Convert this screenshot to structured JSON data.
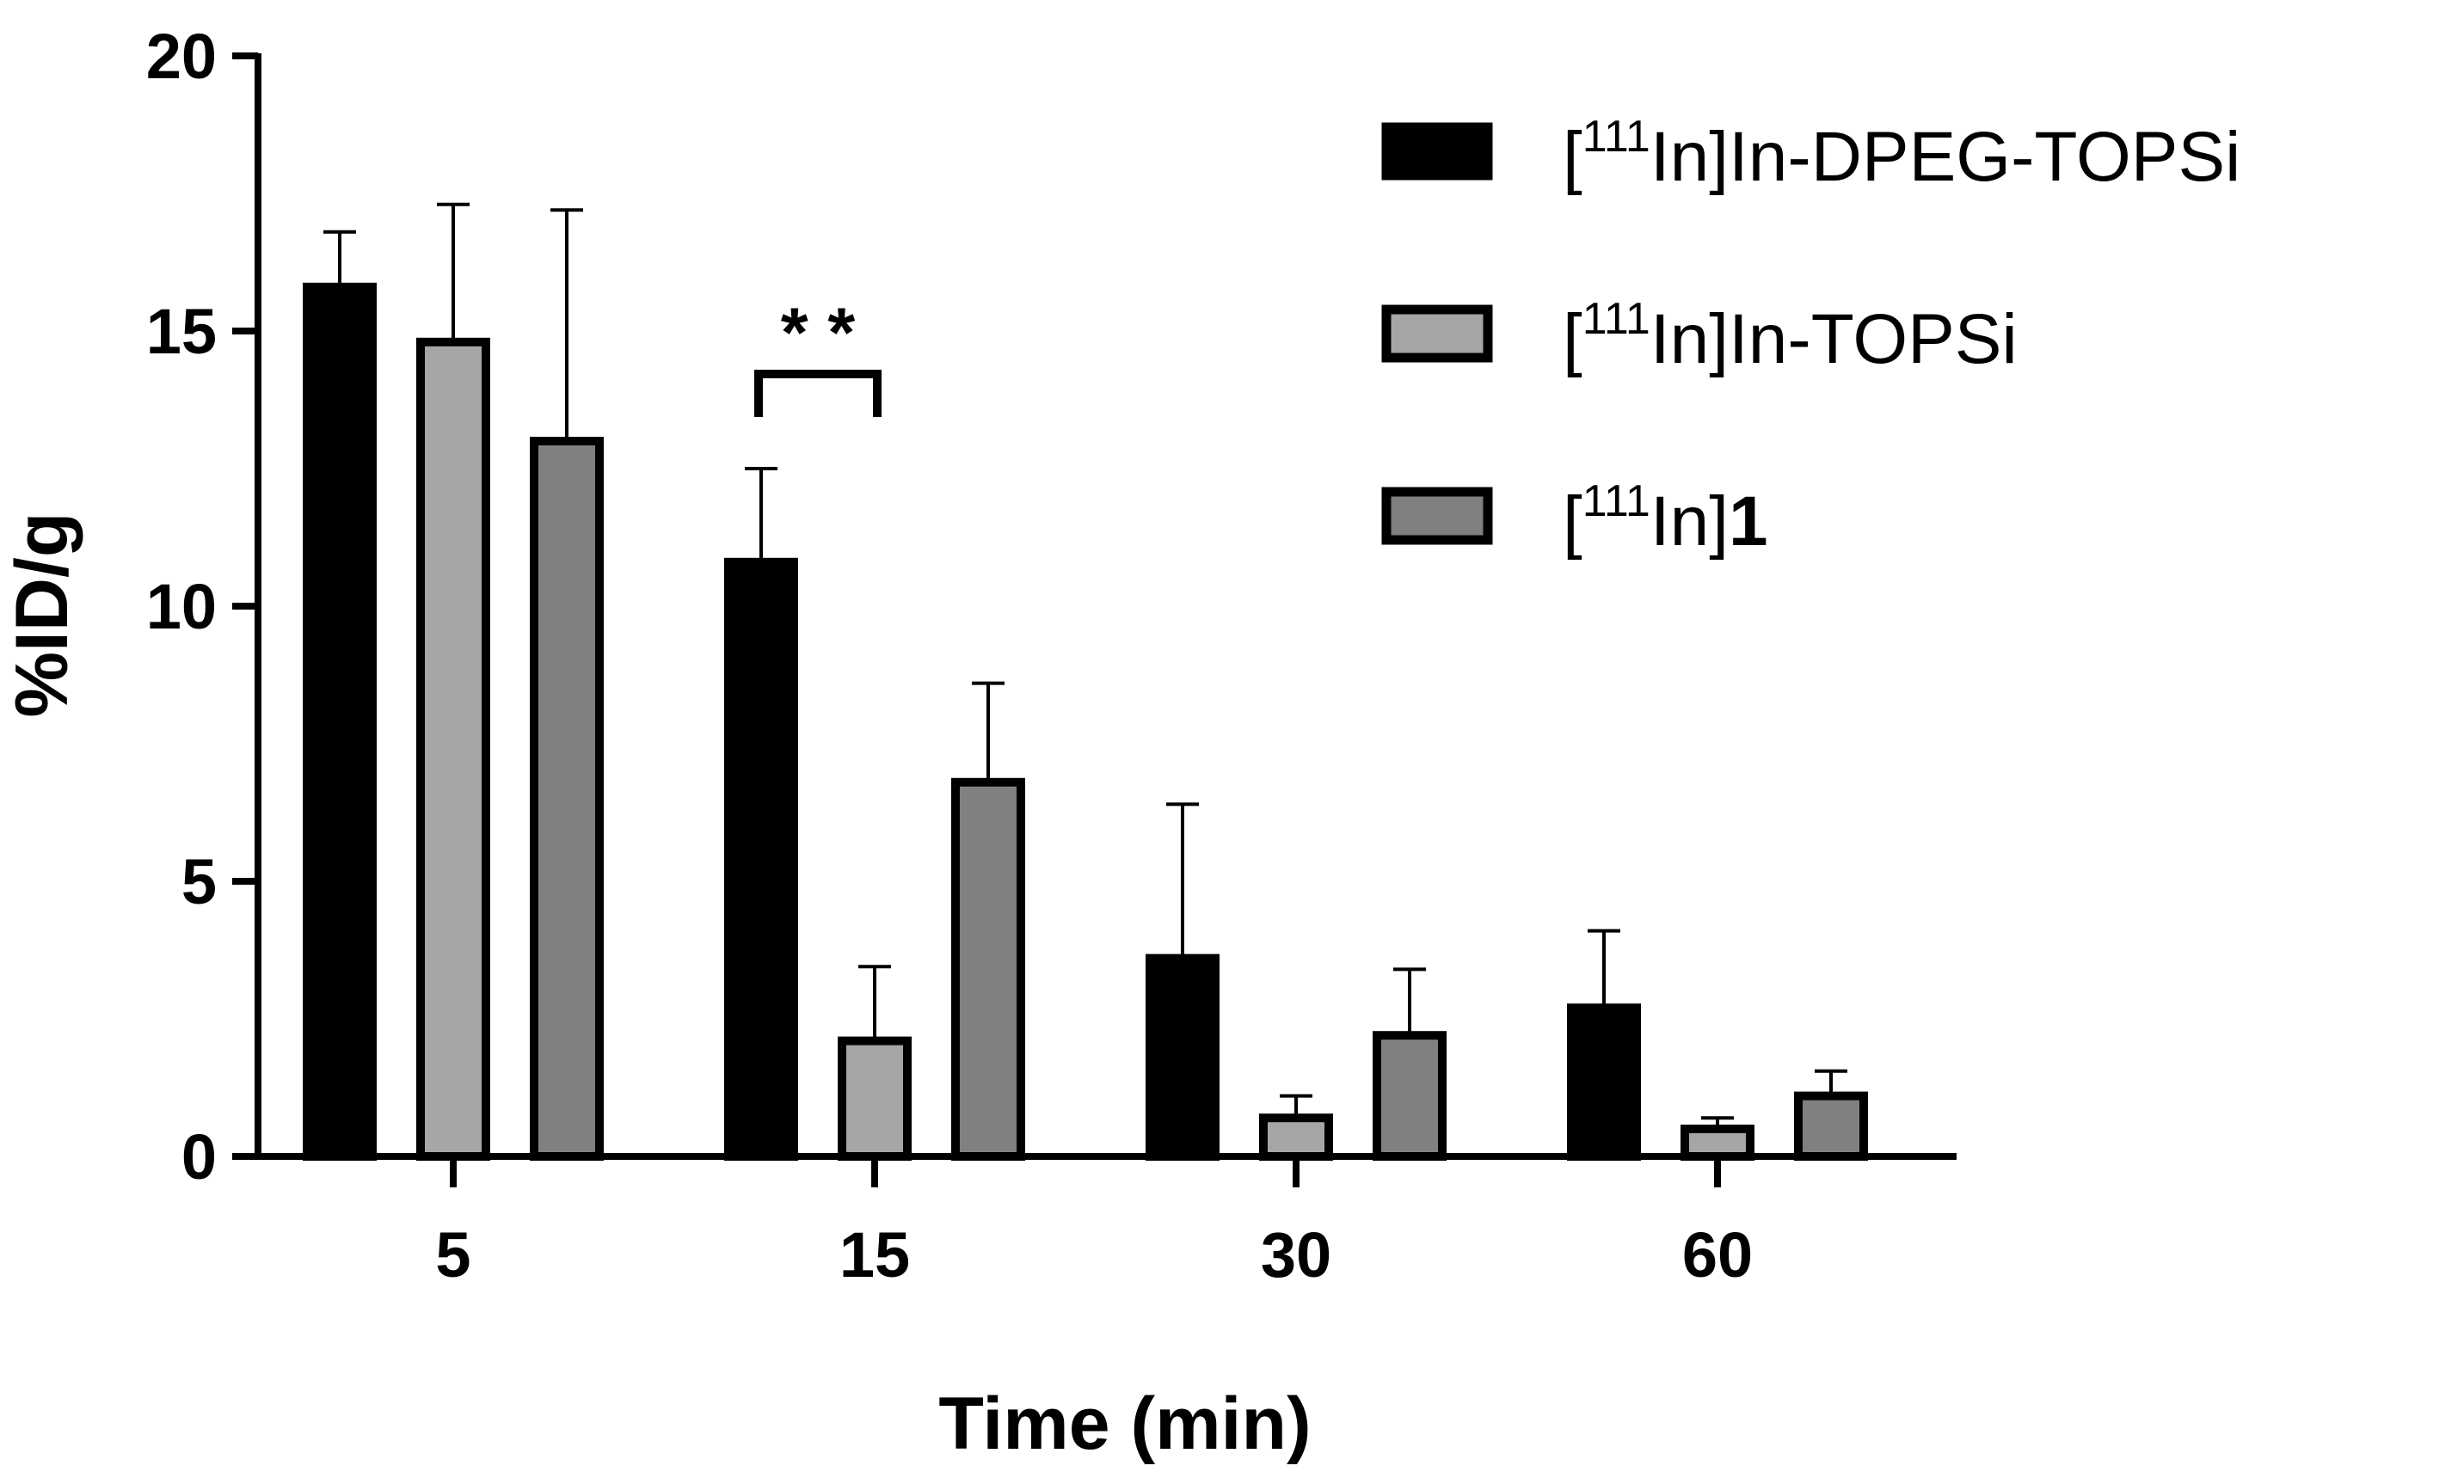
{
  "chart_data": {
    "type": "bar",
    "title": "",
    "xlabel": "Time (min)",
    "ylabel": "%ID/g",
    "ylim": [
      0,
      20
    ],
    "yticks": [
      "0",
      "5",
      "10",
      "15",
      "20"
    ],
    "categories": [
      "5",
      "15",
      "30",
      "60"
    ],
    "series": [
      {
        "name": "[111In]In-DPEG-TOPSi",
        "legend_prefix": "[",
        "legend_sup": "111",
        "legend_rest": "In]In-DPEG-TOPSi",
        "legend_bold": "",
        "color": "#000000",
        "values": [
          15.8,
          10.8,
          3.6,
          2.7
        ],
        "errors": [
          1.0,
          1.7,
          2.8,
          1.4
        ]
      },
      {
        "name": "[111In]In-TOPSi",
        "legend_prefix": "[",
        "legend_sup": "111",
        "legend_rest": "In]In-TOPSi",
        "legend_bold": "",
        "color": "#a6a6a8",
        "values": [
          14.8,
          2.1,
          0.7,
          0.5
        ],
        "errors": [
          2.5,
          1.35,
          0.4,
          0.2
        ]
      },
      {
        "name": "[111In]1",
        "legend_prefix": "[",
        "legend_sup": "111",
        "legend_rest": "In]",
        "legend_bold": "1",
        "color": "#808080",
        "values": [
          13.0,
          6.8,
          2.2,
          1.1
        ],
        "errors": [
          4.2,
          1.8,
          1.2,
          0.45
        ]
      }
    ],
    "annotation": {
      "text": "* *",
      "category_index": 1,
      "from_series": 0,
      "to_series": 1
    },
    "legend_position": "top-right"
  }
}
